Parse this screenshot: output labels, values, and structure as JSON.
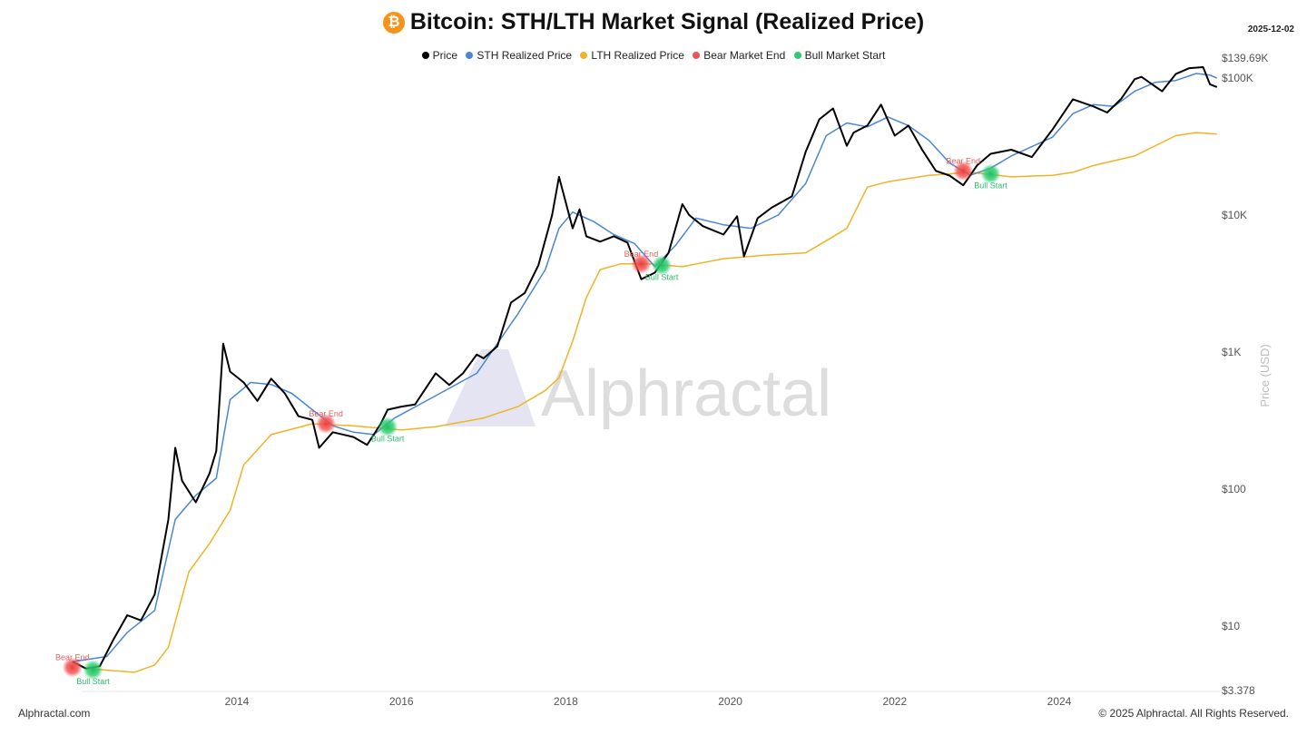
{
  "header": {
    "title": "Bitcoin: STH/LTH Market Signal (Realized Price)",
    "date": "2025-12-02",
    "logo_icon": "bitcoin-icon"
  },
  "legend": [
    {
      "label": "Price",
      "color": "#000000"
    },
    {
      "label": "STH Realized Price",
      "color": "#4a86d4"
    },
    {
      "label": "LTH Realized Price",
      "color": "#f0b323"
    },
    {
      "label": "Bear Market End",
      "color": "#f05454"
    },
    {
      "label": "Bull Market Start",
      "color": "#2ecc71"
    }
  ],
  "footer": {
    "left": "Alphractal.com",
    "right": "© 2025 Alphractal. All Rights Reserved."
  },
  "watermark": "Alphractal",
  "chart_data": {
    "type": "line",
    "title": "Bitcoin: STH/LTH Market Signal (Realized Price)",
    "ylabel": "Price (USD)",
    "yscale": "log",
    "ylim": [
      3.378,
      139690
    ],
    "y_ticks": [
      "$3.378",
      "$10",
      "$100",
      "$1K",
      "$10K",
      "$100K",
      "$139.69K"
    ],
    "x_ticks": [
      "2014",
      "2016",
      "2018",
      "2020",
      "2022",
      "2024"
    ],
    "grid": false,
    "legend_position": "top-center",
    "series": [
      {
        "name": "Price",
        "color": "#000000",
        "points": [
          [
            "2012-01",
            5.5
          ],
          [
            "2012-03",
            4.9
          ],
          [
            "2012-05",
            5.1
          ],
          [
            "2012-07",
            8
          ],
          [
            "2012-09",
            12
          ],
          [
            "2012-11",
            11
          ],
          [
            "2013-01",
            17
          ],
          [
            "2013-03",
            60
          ],
          [
            "2013-04",
            200
          ],
          [
            "2013-05",
            115
          ],
          [
            "2013-07",
            80
          ],
          [
            "2013-09",
            130
          ],
          [
            "2013-10",
            190
          ],
          [
            "2013-11",
            1150
          ],
          [
            "2013-12",
            720
          ],
          [
            "2014-02",
            600
          ],
          [
            "2014-04",
            440
          ],
          [
            "2014-06",
            640
          ],
          [
            "2014-08",
            500
          ],
          [
            "2014-10",
            340
          ],
          [
            "2014-12",
            320
          ],
          [
            "2015-01",
            200
          ],
          [
            "2015-03",
            260
          ],
          [
            "2015-06",
            240
          ],
          [
            "2015-08",
            210
          ],
          [
            "2015-10",
            300
          ],
          [
            "2015-11",
            380
          ],
          [
            "2016-01",
            400
          ],
          [
            "2016-03",
            415
          ],
          [
            "2016-06",
            700
          ],
          [
            "2016-08",
            575
          ],
          [
            "2016-10",
            700
          ],
          [
            "2016-12",
            960
          ],
          [
            "2017-01",
            900
          ],
          [
            "2017-03",
            1100
          ],
          [
            "2017-05",
            2300
          ],
          [
            "2017-07",
            2700
          ],
          [
            "2017-09",
            4300
          ],
          [
            "2017-11",
            10000
          ],
          [
            "2017-12",
            19000
          ],
          [
            "2018-02",
            8000
          ],
          [
            "2018-03",
            11000
          ],
          [
            "2018-04",
            7000
          ],
          [
            "2018-06",
            6400
          ],
          [
            "2018-08",
            7000
          ],
          [
            "2018-10",
            6300
          ],
          [
            "2018-12",
            3400
          ],
          [
            "2019-02",
            3800
          ],
          [
            "2019-04",
            5300
          ],
          [
            "2019-06",
            12000
          ],
          [
            "2019-07",
            10000
          ],
          [
            "2019-09",
            8300
          ],
          [
            "2019-12",
            7200
          ],
          [
            "2020-02",
            9800
          ],
          [
            "2020-03",
            5000
          ],
          [
            "2020-05",
            9500
          ],
          [
            "2020-07",
            11300
          ],
          [
            "2020-10",
            13700
          ],
          [
            "2020-12",
            29000
          ],
          [
            "2021-02",
            50000
          ],
          [
            "2021-04",
            60000
          ],
          [
            "2021-06",
            32000
          ],
          [
            "2021-07",
            40000
          ],
          [
            "2021-09",
            45000
          ],
          [
            "2021-11",
            64000
          ],
          [
            "2022-01",
            38000
          ],
          [
            "2022-03",
            45000
          ],
          [
            "2022-05",
            30000
          ],
          [
            "2022-07",
            21000
          ],
          [
            "2022-09",
            19400
          ],
          [
            "2022-11",
            16500
          ],
          [
            "2023-01",
            23000
          ],
          [
            "2023-03",
            28000
          ],
          [
            "2023-06",
            30000
          ],
          [
            "2023-09",
            26500
          ],
          [
            "2023-12",
            42000
          ],
          [
            "2024-03",
            70000
          ],
          [
            "2024-06",
            62000
          ],
          [
            "2024-08",
            56000
          ],
          [
            "2024-10",
            70000
          ],
          [
            "2024-12",
            98000
          ],
          [
            "2025-01",
            102000
          ],
          [
            "2025-04",
            80000
          ],
          [
            "2025-06",
            107000
          ],
          [
            "2025-08",
            118000
          ],
          [
            "2025-10",
            120000
          ],
          [
            "2025-11",
            90000
          ],
          [
            "2025-12",
            86000
          ]
        ]
      },
      {
        "name": "STH Realized Price",
        "color": "#4a86d4",
        "points": [
          [
            "2012-01",
            5.5
          ],
          [
            "2012-06",
            6
          ],
          [
            "2012-09",
            9
          ],
          [
            "2013-01",
            13
          ],
          [
            "2013-04",
            60
          ],
          [
            "2013-07",
            90
          ],
          [
            "2013-10",
            120
          ],
          [
            "2013-12",
            450
          ],
          [
            "2014-03",
            600
          ],
          [
            "2014-06",
            580
          ],
          [
            "2014-09",
            500
          ],
          [
            "2014-12",
            380
          ],
          [
            "2015-03",
            290
          ],
          [
            "2015-06",
            260
          ],
          [
            "2015-09",
            250
          ],
          [
            "2015-12",
            330
          ],
          [
            "2016-06",
            480
          ],
          [
            "2016-12",
            700
          ],
          [
            "2017-06",
            1900
          ],
          [
            "2017-10",
            4000
          ],
          [
            "2017-12",
            8000
          ],
          [
            "2018-02",
            10500
          ],
          [
            "2018-05",
            9000
          ],
          [
            "2018-08",
            7200
          ],
          [
            "2018-11",
            6200
          ],
          [
            "2019-02",
            4200
          ],
          [
            "2019-05",
            6000
          ],
          [
            "2019-08",
            9500
          ],
          [
            "2019-12",
            8500
          ],
          [
            "2020-04",
            8000
          ],
          [
            "2020-08",
            10000
          ],
          [
            "2020-12",
            17000
          ],
          [
            "2021-03",
            38000
          ],
          [
            "2021-06",
            47000
          ],
          [
            "2021-09",
            44000
          ],
          [
            "2021-12",
            52000
          ],
          [
            "2022-03",
            45000
          ],
          [
            "2022-06",
            35000
          ],
          [
            "2022-09",
            24000
          ],
          [
            "2022-12",
            19500
          ],
          [
            "2023-03",
            22000
          ],
          [
            "2023-06",
            27000
          ],
          [
            "2023-12",
            37000
          ],
          [
            "2024-03",
            55000
          ],
          [
            "2024-06",
            64000
          ],
          [
            "2024-09",
            62000
          ],
          [
            "2024-12",
            80000
          ],
          [
            "2025-03",
            93000
          ],
          [
            "2025-06",
            96000
          ],
          [
            "2025-09",
            108000
          ],
          [
            "2025-11",
            105000
          ],
          [
            "2025-12",
            100000
          ]
        ]
      },
      {
        "name": "LTH Realized Price",
        "color": "#f0b323",
        "points": [
          [
            "2012-03",
            4.9
          ],
          [
            "2012-10",
            4.6
          ],
          [
            "2013-01",
            5.2
          ],
          [
            "2013-03",
            7
          ],
          [
            "2013-06",
            25
          ],
          [
            "2013-09",
            40
          ],
          [
            "2013-12",
            70
          ],
          [
            "2014-02",
            150
          ],
          [
            "2014-06",
            250
          ],
          [
            "2014-12",
            300
          ],
          [
            "2015-06",
            290
          ],
          [
            "2016-01",
            270
          ],
          [
            "2016-06",
            285
          ],
          [
            "2017-01",
            330
          ],
          [
            "2017-06",
            400
          ],
          [
            "2017-10",
            525
          ],
          [
            "2017-12",
            650
          ],
          [
            "2018-02",
            1200
          ],
          [
            "2018-04",
            2500
          ],
          [
            "2018-06",
            4000
          ],
          [
            "2018-09",
            4400
          ],
          [
            "2019-01",
            4400
          ],
          [
            "2019-06",
            4200
          ],
          [
            "2019-12",
            4800
          ],
          [
            "2020-06",
            5100
          ],
          [
            "2020-12",
            5300
          ],
          [
            "2021-03",
            6500
          ],
          [
            "2021-06",
            8000
          ],
          [
            "2021-09",
            16000
          ],
          [
            "2021-12",
            17500
          ],
          [
            "2022-06",
            19500
          ],
          [
            "2022-12",
            20500
          ],
          [
            "2023-06",
            19000
          ],
          [
            "2023-12",
            19500
          ],
          [
            "2024-03",
            20500
          ],
          [
            "2024-06",
            23000
          ],
          [
            "2024-12",
            27000
          ],
          [
            "2025-06",
            38000
          ],
          [
            "2025-09",
            40000
          ],
          [
            "2025-12",
            39000
          ]
        ]
      }
    ],
    "signals": [
      {
        "type": "Bear Market End",
        "label": "Bear End",
        "date": "2012-01",
        "value": 5.0
      },
      {
        "type": "Bull Market Start",
        "label": "Bull Start",
        "date": "2012-04",
        "value": 4.8
      },
      {
        "type": "Bear Market End",
        "label": "Bear End",
        "date": "2015-02",
        "value": 300
      },
      {
        "type": "Bull Market Start",
        "label": "Bull Start",
        "date": "2015-11",
        "value": 285
      },
      {
        "type": "Bear Market End",
        "label": "Bear End",
        "date": "2018-12",
        "value": 4400
      },
      {
        "type": "Bull Market Start",
        "label": "Bull Start",
        "date": "2019-03",
        "value": 4300
      },
      {
        "type": "Bear Market End",
        "label": "Bear End",
        "date": "2022-11",
        "value": 21000
      },
      {
        "type": "Bull Market Start",
        "label": "Bull Start",
        "date": "2023-03",
        "value": 20000
      }
    ]
  }
}
